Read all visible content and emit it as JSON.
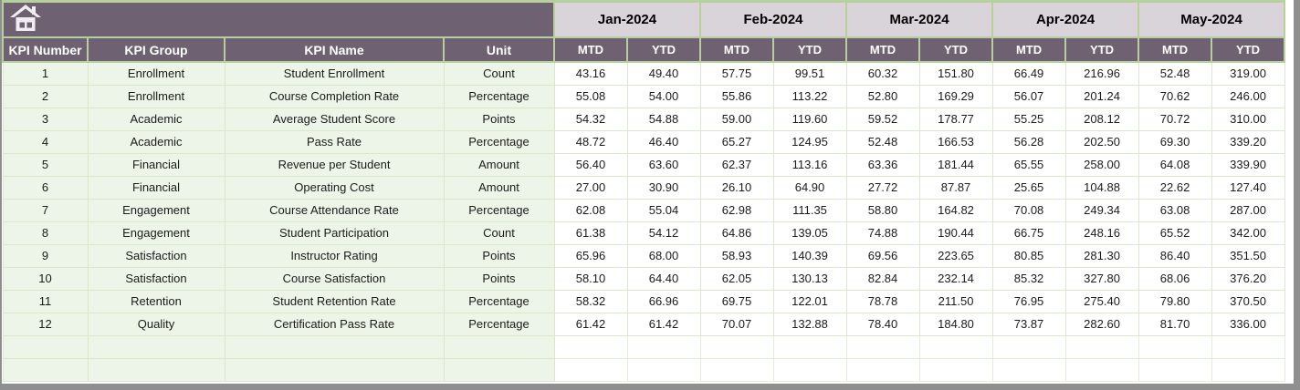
{
  "colors": {
    "header_bg": "#6e6272",
    "month_bg": "#d9d4d9",
    "row_green": "#ecf5e7",
    "border_green": "#b7cf9c",
    "cell_border": "#d9e8ca",
    "frame_gray": "#8f8f8f",
    "header_text": "#ffffff",
    "icon_white": "#f0eef2"
  },
  "header": {
    "home_icon": "home-icon",
    "columns": [
      "KPI Number",
      "KPI Group",
      "KPI Name",
      "Unit"
    ],
    "months": [
      "Jan-2024",
      "Feb-2024",
      "Mar-2024",
      "Apr-2024",
      "May-2024"
    ],
    "sub_columns": [
      "MTD",
      "YTD"
    ]
  },
  "rows": [
    {
      "num": "1",
      "group": "Enrollment",
      "name": "Student Enrollment",
      "unit": "Count",
      "values": [
        "43.16",
        "49.40",
        "57.75",
        "99.51",
        "60.32",
        "151.80",
        "66.49",
        "216.96",
        "52.48",
        "319.00"
      ]
    },
    {
      "num": "2",
      "group": "Enrollment",
      "name": "Course Completion Rate",
      "unit": "Percentage",
      "values": [
        "55.08",
        "54.00",
        "55.86",
        "113.22",
        "52.80",
        "169.29",
        "56.07",
        "201.24",
        "70.62",
        "246.00"
      ]
    },
    {
      "num": "3",
      "group": "Academic",
      "name": "Average Student Score",
      "unit": "Points",
      "values": [
        "54.32",
        "54.88",
        "59.00",
        "119.60",
        "59.52",
        "178.77",
        "55.25",
        "208.12",
        "70.72",
        "310.00"
      ]
    },
    {
      "num": "4",
      "group": "Academic",
      "name": "Pass Rate",
      "unit": "Percentage",
      "values": [
        "48.72",
        "46.40",
        "65.27",
        "124.95",
        "52.48",
        "166.53",
        "56.28",
        "202.50",
        "69.30",
        "339.20"
      ]
    },
    {
      "num": "5",
      "group": "Financial",
      "name": "Revenue per Student",
      "unit": "Amount",
      "values": [
        "56.40",
        "63.60",
        "62.37",
        "113.16",
        "63.36",
        "181.44",
        "65.55",
        "258.00",
        "64.08",
        "339.90"
      ]
    },
    {
      "num": "6",
      "group": "Financial",
      "name": "Operating Cost",
      "unit": "Amount",
      "values": [
        "27.00",
        "30.90",
        "26.10",
        "64.90",
        "27.72",
        "87.87",
        "25.65",
        "104.88",
        "22.62",
        "127.40"
      ]
    },
    {
      "num": "7",
      "group": "Engagement",
      "name": "Course Attendance Rate",
      "unit": "Percentage",
      "values": [
        "62.08",
        "55.04",
        "62.98",
        "111.35",
        "58.80",
        "164.82",
        "70.08",
        "249.34",
        "63.08",
        "287.00"
      ]
    },
    {
      "num": "8",
      "group": "Engagement",
      "name": "Student Participation",
      "unit": "Count",
      "values": [
        "61.38",
        "54.12",
        "64.86",
        "139.05",
        "74.88",
        "190.44",
        "66.75",
        "248.16",
        "65.52",
        "342.00"
      ]
    },
    {
      "num": "9",
      "group": "Satisfaction",
      "name": "Instructor Rating",
      "unit": "Points",
      "values": [
        "65.96",
        "68.00",
        "58.93",
        "140.39",
        "69.56",
        "223.65",
        "80.85",
        "281.30",
        "86.40",
        "351.50"
      ]
    },
    {
      "num": "10",
      "group": "Satisfaction",
      "name": "Course Satisfaction",
      "unit": "Points",
      "values": [
        "58.10",
        "64.40",
        "62.05",
        "130.13",
        "82.84",
        "232.14",
        "85.32",
        "327.80",
        "68.06",
        "376.20"
      ]
    },
    {
      "num": "11",
      "group": "Retention",
      "name": "Student Retention Rate",
      "unit": "Percentage",
      "values": [
        "58.32",
        "66.96",
        "69.75",
        "122.01",
        "78.78",
        "211.50",
        "76.95",
        "275.40",
        "79.80",
        "370.50"
      ]
    },
    {
      "num": "12",
      "group": "Quality",
      "name": "Certification Pass Rate",
      "unit": "Percentage",
      "values": [
        "61.42",
        "61.42",
        "70.07",
        "132.88",
        "78.40",
        "184.80",
        "73.87",
        "282.60",
        "81.70",
        "336.00"
      ]
    }
  ],
  "empty_row_count": 2
}
